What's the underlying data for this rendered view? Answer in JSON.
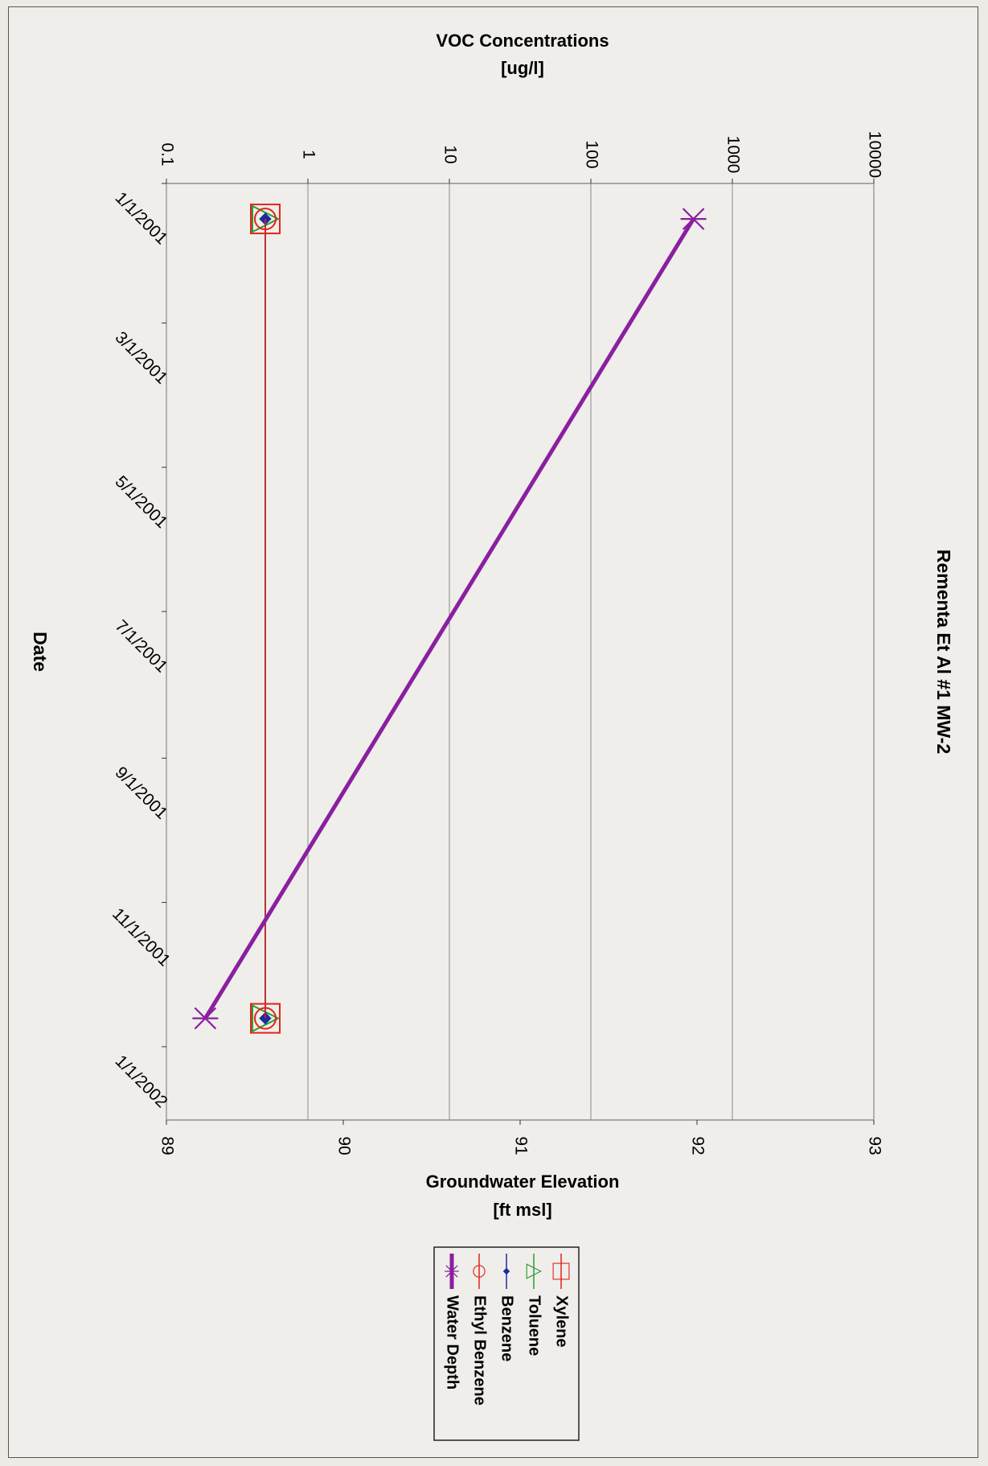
{
  "chart_data": {
    "type": "line",
    "title": "Rementa Et Al #1 MW-2",
    "xlabel": "Date",
    "y_left_label": [
      "VOC Concentrations",
      "[ug/l]"
    ],
    "y_right_label": [
      "Groundwater Elevation",
      "[ft msl]"
    ],
    "x_ticks": [
      "1/1/2001",
      "3/1/2001",
      "5/1/2001",
      "7/1/2001",
      "9/1/2001",
      "11/1/2001",
      "1/1/2002"
    ],
    "x_range": [
      "1/1/2001",
      "2/1/2002"
    ],
    "y_left_ticks": [
      "0.1",
      "1",
      "10",
      "100",
      "1000",
      "10000"
    ],
    "y_left_scale": "log",
    "y_left_range": [
      0.1,
      10000
    ],
    "y_right_ticks": [
      "89",
      "90",
      "91",
      "92",
      "93"
    ],
    "y_right_range": [
      89,
      93
    ],
    "grid": true,
    "legend_position": "bottom",
    "orientation": "rotated 90 degrees clockwise",
    "series": [
      {
        "name": "Xylene",
        "axis": "left",
        "color": "#e0241b",
        "marker": "square",
        "x": [
          "1/16/2001",
          "12/20/2001"
        ],
        "values": [
          0.5,
          0.5
        ]
      },
      {
        "name": "Toluene",
        "axis": "left",
        "color": "#2f9a34",
        "marker": "triangle",
        "x": [
          "1/16/2001",
          "12/20/2001"
        ],
        "values": [
          0.5,
          0.5
        ]
      },
      {
        "name": "Benzene",
        "axis": "left",
        "color": "#1f2a9b",
        "marker": "diamond",
        "x": [
          "1/16/2001",
          "12/20/2001"
        ],
        "values": [
          0.5,
          0.5
        ]
      },
      {
        "name": "Ethyl Benzene",
        "axis": "left",
        "color": "#e0241b",
        "marker": "circle",
        "x": [
          "1/16/2001",
          "12/20/2001"
        ],
        "values": [
          0.5,
          0.5
        ]
      },
      {
        "name": "Water Depth",
        "axis": "right",
        "color": "#8a1fa0",
        "marker": "star",
        "thick": true,
        "x": [
          "1/16/2001",
          "12/20/2001"
        ],
        "values": [
          91.98,
          89.22
        ]
      }
    ]
  }
}
